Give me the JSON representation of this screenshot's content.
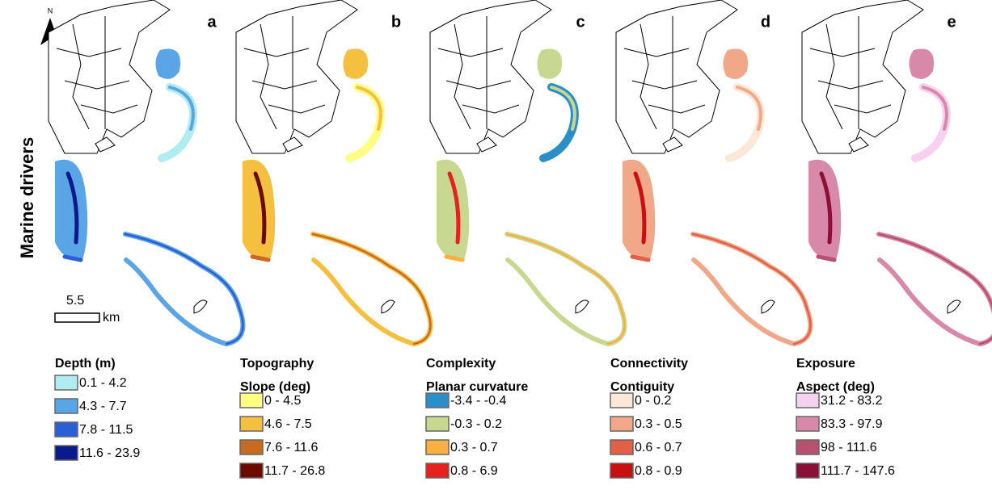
{
  "side_label": "Marine drivers",
  "north": "N",
  "scale": {
    "value": "5.5",
    "unit": "km"
  },
  "panels": [
    {
      "letter": "a",
      "titles": [
        "Depth (m)"
      ],
      "items": [
        {
          "label": "0.1 - 4.2",
          "color": "#b0ecf0"
        },
        {
          "label": "4.3 - 7.7",
          "color": "#5aa5e6"
        },
        {
          "label": "7.8 - 11.5",
          "color": "#2a5fd6"
        },
        {
          "label": "11.6 - 23.9",
          "color": "#0a1a8c"
        }
      ]
    },
    {
      "letter": "b",
      "titles": [
        "Topography",
        "Slope (deg)"
      ],
      "items": [
        {
          "label": "0 - 4.5",
          "color": "#ffff80"
        },
        {
          "label": "4.6 - 7.5",
          "color": "#f5c040"
        },
        {
          "label": "7.6 - 11.6",
          "color": "#c86a20"
        },
        {
          "label": "11.7 - 26.8",
          "color": "#6a0a00"
        }
      ]
    },
    {
      "letter": "c",
      "titles": [
        "Complexity",
        "Planar curvature"
      ],
      "items": [
        {
          "label": "-3.4 - -0.4",
          "color": "#2a8fc8"
        },
        {
          "label": "-0.3 - 0.2",
          "color": "#c8d890"
        },
        {
          "label": "0.3 - 0.7",
          "color": "#f8b040"
        },
        {
          "label": "0.8 - 6.9",
          "color": "#e82020"
        }
      ]
    },
    {
      "letter": "d",
      "titles": [
        "Connectivity",
        "Contiguity"
      ],
      "items": [
        {
          "label": "0 - 0.2",
          "color": "#fde8d8"
        },
        {
          "label": "0.3 - 0.5",
          "color": "#f0a888"
        },
        {
          "label": "0.6 - 0.7",
          "color": "#e06048"
        },
        {
          "label": "0.8 - 0.9",
          "color": "#c81010"
        }
      ]
    },
    {
      "letter": "e",
      "titles": [
        "Exposure",
        "Aspect (deg)"
      ],
      "items": [
        {
          "label": "31.2 - 83.2",
          "color": "#f8d0f0"
        },
        {
          "label": "83.3 - 97.9",
          "color": "#d888a8"
        },
        {
          "label": "98 - 111.6",
          "color": "#b85070"
        },
        {
          "label": "111.7 - 147.6",
          "color": "#8a1038"
        }
      ]
    }
  ]
}
